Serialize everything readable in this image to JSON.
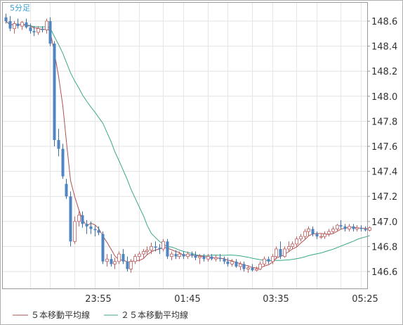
{
  "chart_data": {
    "type": "candlestick",
    "timeframe_label": "5分足",
    "y_tick_labels": [
      "148.6",
      "148.4",
      "148.2",
      "148.0",
      "147.8",
      "147.6",
      "147.4",
      "147.2",
      "147.0",
      "146.8",
      "146.6"
    ],
    "y_ticks": [
      148.6,
      148.4,
      148.2,
      148.0,
      147.8,
      147.6,
      147.4,
      147.2,
      147.0,
      146.8,
      146.6
    ],
    "ylim": [
      146.45,
      148.72
    ],
    "x_tick_labels": [
      {
        "label": "23:55",
        "index": 23
      },
      {
        "label": "01:45",
        "index": 45
      },
      {
        "label": "03:35",
        "index": 67
      },
      {
        "label": "05:25",
        "index": 89
      }
    ],
    "candle_count": 91,
    "grid": true,
    "legend": [
      {
        "label": "５本移動平均線",
        "color": "#b05050"
      },
      {
        "label": "２５本移動平均線",
        "color": "#3aa88a"
      }
    ],
    "colors": {
      "up": "#d98a8a",
      "down": "#4f86c2",
      "ma5": "#b05050",
      "ma25": "#3aa88a"
    },
    "candles": [
      [
        148.63,
        148.66,
        148.58,
        148.6
      ],
      [
        148.6,
        148.64,
        148.52,
        148.54
      ],
      [
        148.54,
        148.6,
        148.5,
        148.58
      ],
      [
        148.58,
        148.62,
        148.54,
        148.56
      ],
      [
        148.56,
        148.6,
        148.53,
        148.59
      ],
      [
        148.59,
        148.62,
        148.54,
        148.55
      ],
      [
        148.55,
        148.58,
        148.5,
        148.52
      ],
      [
        148.52,
        148.56,
        148.48,
        148.51
      ],
      [
        148.51,
        148.56,
        148.49,
        148.54
      ],
      [
        148.54,
        148.56,
        148.51,
        148.53
      ],
      [
        148.53,
        148.62,
        148.5,
        148.6
      ],
      [
        148.6,
        148.63,
        148.4,
        148.42
      ],
      [
        148.42,
        148.44,
        147.6,
        147.65
      ],
      [
        147.65,
        147.74,
        147.52,
        147.58
      ],
      [
        147.58,
        147.62,
        147.34,
        147.36
      ],
      [
        147.3,
        147.34,
        147.18,
        147.2
      ],
      [
        147.2,
        147.24,
        146.8,
        146.84
      ],
      [
        146.84,
        147.04,
        146.82,
        147.0
      ],
      [
        147.0,
        147.08,
        146.96,
        147.05
      ],
      [
        147.05,
        147.08,
        146.95,
        146.98
      ],
      [
        146.98,
        147.01,
        146.9,
        146.96
      ],
      [
        146.96,
        147.0,
        146.9,
        146.94
      ],
      [
        146.94,
        146.97,
        146.88,
        146.93
      ],
      [
        146.93,
        146.96,
        146.89,
        146.91
      ],
      [
        146.9,
        146.92,
        146.66,
        146.68
      ],
      [
        146.68,
        146.74,
        146.64,
        146.7
      ],
      [
        146.7,
        146.74,
        146.64,
        146.66
      ],
      [
        146.66,
        146.71,
        146.62,
        146.68
      ],
      [
        146.68,
        146.76,
        146.66,
        146.74
      ],
      [
        146.74,
        146.78,
        146.66,
        146.68
      ],
      [
        146.68,
        146.72,
        146.6,
        146.62
      ],
      [
        146.62,
        146.7,
        146.59,
        146.68
      ],
      [
        146.68,
        146.74,
        146.66,
        146.72
      ],
      [
        146.72,
        146.76,
        146.68,
        146.74
      ],
      [
        146.74,
        146.78,
        146.71,
        146.76
      ],
      [
        146.76,
        146.8,
        146.73,
        146.77
      ],
      [
        146.77,
        146.83,
        146.74,
        146.8
      ],
      [
        146.8,
        146.84,
        146.76,
        146.79
      ],
      [
        146.79,
        146.82,
        146.74,
        146.78
      ],
      [
        146.78,
        146.86,
        146.76,
        146.84
      ],
      [
        146.84,
        146.86,
        146.7,
        146.72
      ],
      [
        146.72,
        146.76,
        146.69,
        146.74
      ],
      [
        146.74,
        146.77,
        146.7,
        146.72
      ],
      [
        146.72,
        146.76,
        146.7,
        146.74
      ],
      [
        146.74,
        146.76,
        146.7,
        146.72
      ],
      [
        146.72,
        146.76,
        146.7,
        146.74
      ],
      [
        146.74,
        146.76,
        146.71,
        146.73
      ],
      [
        146.73,
        146.76,
        146.69,
        146.71
      ],
      [
        146.71,
        146.74,
        146.66,
        146.72
      ],
      [
        146.72,
        146.74,
        146.68,
        146.7
      ],
      [
        146.7,
        146.74,
        146.68,
        146.72
      ],
      [
        146.72,
        146.74,
        146.69,
        146.7
      ],
      [
        146.7,
        146.73,
        146.68,
        146.71
      ],
      [
        146.71,
        146.74,
        146.68,
        146.7
      ],
      [
        146.7,
        146.72,
        146.66,
        146.68
      ],
      [
        146.68,
        146.71,
        146.64,
        146.66
      ],
      [
        146.66,
        146.7,
        146.64,
        146.68
      ],
      [
        146.68,
        146.7,
        146.63,
        146.64
      ],
      [
        146.64,
        146.68,
        146.61,
        146.66
      ],
      [
        146.66,
        146.68,
        146.6,
        146.62
      ],
      [
        146.62,
        146.65,
        146.59,
        146.63
      ],
      [
        146.63,
        146.66,
        146.6,
        146.61
      ],
      [
        146.61,
        146.64,
        146.6,
        146.62
      ],
      [
        146.62,
        146.68,
        146.61,
        146.66
      ],
      [
        146.66,
        146.72,
        146.64,
        146.7
      ],
      [
        146.7,
        146.72,
        146.66,
        146.68
      ],
      [
        146.68,
        146.74,
        146.66,
        146.72
      ],
      [
        146.72,
        146.8,
        146.7,
        146.78
      ],
      [
        146.78,
        146.84,
        146.7,
        146.72
      ],
      [
        146.72,
        146.8,
        146.71,
        146.78
      ],
      [
        146.78,
        146.84,
        146.76,
        146.8
      ],
      [
        146.8,
        146.84,
        146.78,
        146.82
      ],
      [
        146.82,
        146.88,
        146.8,
        146.86
      ],
      [
        146.86,
        146.9,
        146.84,
        146.88
      ],
      [
        146.88,
        146.94,
        146.86,
        146.92
      ],
      [
        146.92,
        146.96,
        146.88,
        146.94
      ],
      [
        146.94,
        146.96,
        146.88,
        146.9
      ],
      [
        146.9,
        146.92,
        146.86,
        146.88
      ],
      [
        146.88,
        146.9,
        146.86,
        146.88
      ],
      [
        146.88,
        146.92,
        146.86,
        146.9
      ],
      [
        146.9,
        146.94,
        146.88,
        146.92
      ],
      [
        146.92,
        146.96,
        146.9,
        146.94
      ],
      [
        146.94,
        146.98,
        146.92,
        146.97
      ],
      [
        146.97,
        147.01,
        146.94,
        146.96
      ],
      [
        146.96,
        146.98,
        146.92,
        146.94
      ],
      [
        146.94,
        146.98,
        146.92,
        146.96
      ],
      [
        146.96,
        146.98,
        146.92,
        146.94
      ],
      [
        146.94,
        146.97,
        146.92,
        146.95
      ],
      [
        146.95,
        146.97,
        146.92,
        146.94
      ],
      [
        146.94,
        146.96,
        146.92,
        146.93
      ],
      [
        146.93,
        146.96,
        146.92,
        146.95
      ]
    ]
  }
}
